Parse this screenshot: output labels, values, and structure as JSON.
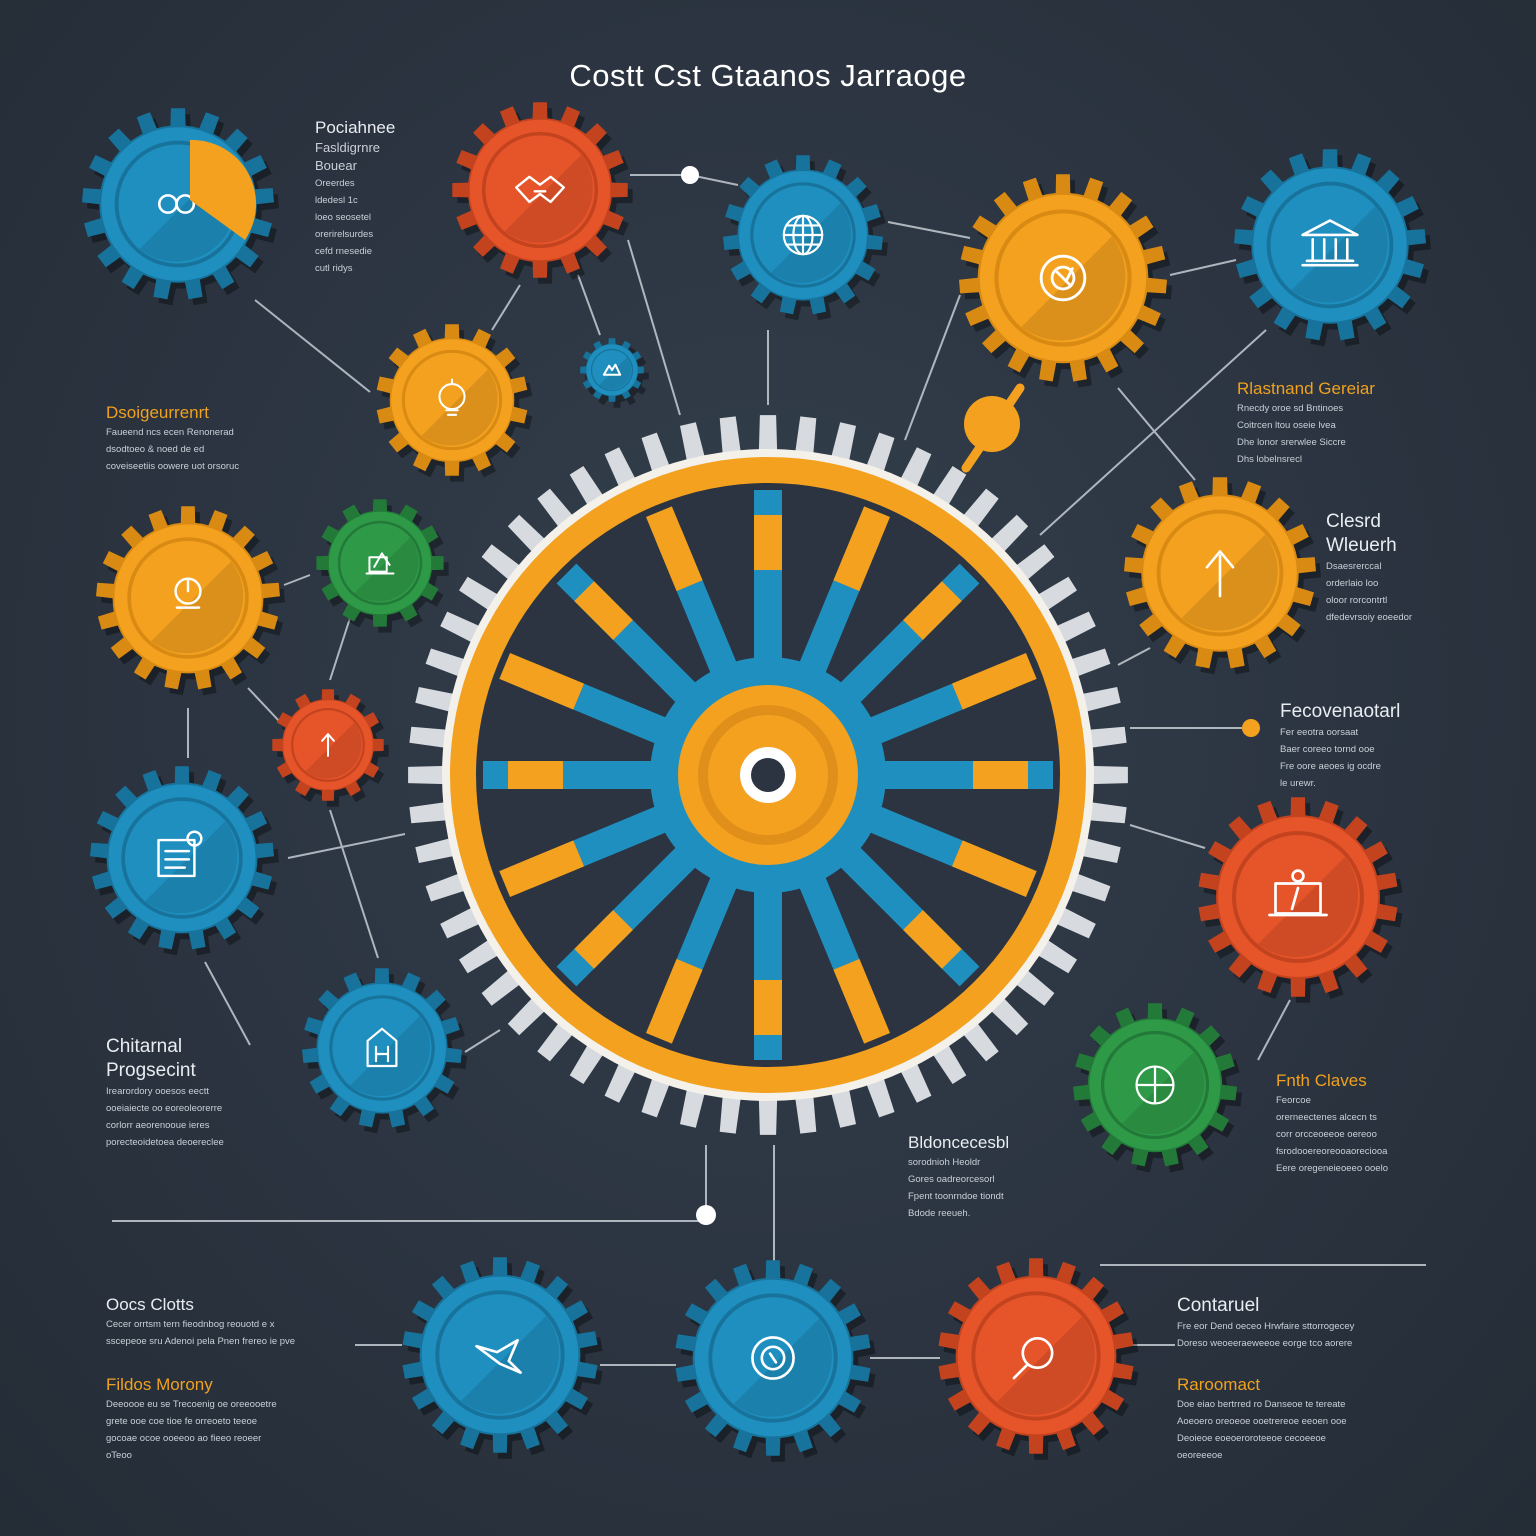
{
  "title": "Costt Cst Gtaanos Jarraoge",
  "colors": {
    "background": "#2b3440",
    "blue": "#1f8fbf",
    "orange": "#f3a11f",
    "red": "#e6542a",
    "green": "#2e9a48",
    "line": "#c5ccd4",
    "white": "#ffffff"
  },
  "labels": {
    "top_left": {
      "heading_1": "Pociahnee",
      "heading_2": "Fasldigrnre",
      "heading_3": "Bouear",
      "lines": [
        "Oreerdes",
        "ldedesl 1c",
        "loeo seosetel",
        "orerirelsurdes",
        "cefd rnesedie",
        "cutl ridys"
      ]
    },
    "dasig": {
      "heading": "Dsoigeurrenrt",
      "lines": [
        "Faueend ncs ecen Renonerad",
        "dsodtoeo & noed de ed",
        "coveiseetiis oowere uot orsoruc"
      ]
    },
    "rlastnand": {
      "heading": "Rlastnand Gereiar",
      "lines": [
        "Rnecdy oroe sd Bntinoes",
        "Coitrcen ltou oseie lvea",
        "Dhe lonor srerwlee Siccre",
        "Dhs lobelnsrecl"
      ]
    },
    "cleard": {
      "heading_1": "Clesrd",
      "heading_2": "Wleuerh",
      "lines": [
        "Dsaesrerccal",
        "orderlaio loo",
        "oloor rorcontrtl",
        "dfedevrsoiy eoeedor"
      ]
    },
    "fecove": {
      "heading": "Fecovenaotarl",
      "lines": [
        "Fer eeotra oorsaat",
        "Baer coreeo tornd ooe",
        "Fre oore aeoes ig ocdre",
        "le urewr."
      ]
    },
    "chiternal": {
      "heading_1": "Chitarnal",
      "heading_2": "Progsecint",
      "lines": [
        "Irearordory ooesos eectt",
        "ooeiaiecte oo eoreoleorerre",
        "corlorr aeorenooue ieres",
        "porecteoidetoea deoereclee"
      ]
    },
    "bldone": {
      "heading": "Bldoncecesbl",
      "lines": [
        "sorodnioh Heoldr",
        "Gores oadreorcesorl",
        "Fpent toonrndoe tiondt",
        "Bdode reeueh."
      ]
    },
    "fnth": {
      "heading": "Fnth Claves",
      "lines": [
        "Feorcoe",
        "orerneectenes alcecn ts",
        "corr orcceoeeoe oereoo",
        "fsrodooereoreooaoreciooa",
        "Eere oregeneieoeeo ooelo"
      ]
    },
    "oocs": {
      "heading": "Oocs Clotts",
      "lines": [
        "Cecer orrtsm tern fieodnbog reouotd e x",
        "sscepeoe sru Adenoi pela Pnen frereo ie pve"
      ]
    },
    "fildos": {
      "heading": "Fildos Morony",
      "lines": [
        "Deeoooe eu se Trecoenig oe oreeooetre",
        "grete ooe coe tioe fe orreoeto teeoe",
        "gocoae ocoe ooeeoo ao fieeo reoeer",
        "oTeoo"
      ]
    },
    "contaruel": {
      "heading": "Contaruel",
      "lines": [
        "Fre eor Dend oeceo Hrwfaire sttorrogecey",
        "Doreso weoeeraeweeoe eorge tco aorere"
      ]
    },
    "raroomact": {
      "heading": "Raroomact",
      "lines": [
        "Doe eiao bertrred ro Danseoe te tereate",
        "Aoeoero oreoeoe ooetrereoe eeoen ooe",
        "Deoieoe eoeoeroroteeoe cecoeeoe",
        "oeoreeeoe"
      ]
    }
  },
  "icons": [
    "infinity-pie-icon",
    "handshake-icon",
    "globe-icon",
    "gear-gauge-icon",
    "bank-icon",
    "lightbulb-icon",
    "mountain-icon",
    "analytics-icon",
    "presenter-icon",
    "decision-icon",
    "briefcase-icon",
    "clipboard-icon",
    "factory-icon",
    "crosshair-icon",
    "dove-icon",
    "money-gear-icon",
    "magnify-icon",
    "teacher-board-icon",
    "arrow-up-icon"
  ]
}
